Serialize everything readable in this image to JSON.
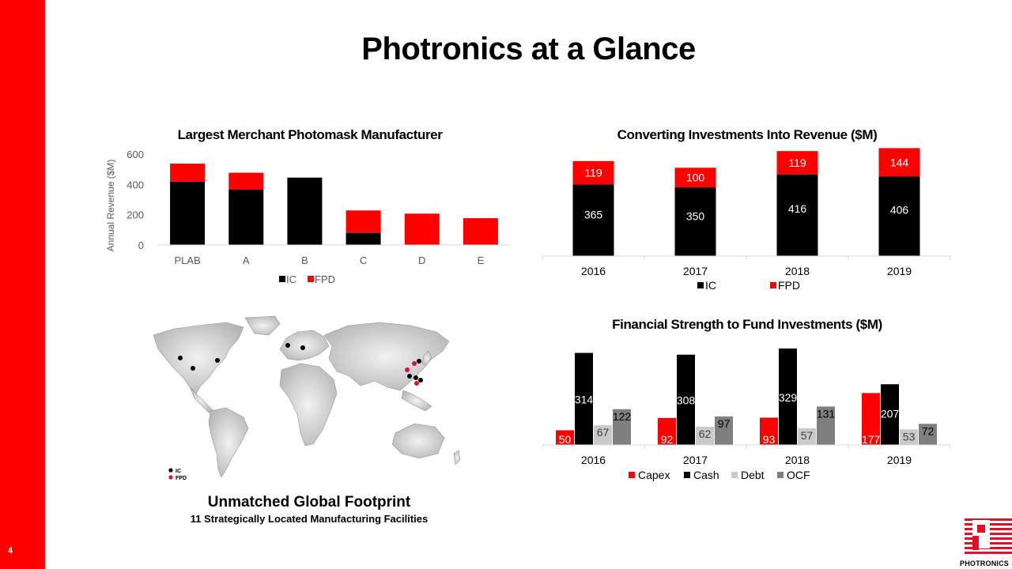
{
  "page": {
    "title": "Photronics at a Glance",
    "page_number": "4"
  },
  "colors": {
    "red": "#ff0000",
    "black": "#000000",
    "light_gray": "#c9c9c9",
    "dark_gray": "#7f7f7f"
  },
  "chart_data": [
    {
      "type": "bar",
      "stacked": true,
      "title": "Largest Merchant Photomask Manufacturer",
      "ylabel": "Annual Revenue ($M)",
      "xlabel": "",
      "ylim": [
        0,
        600
      ],
      "yticks": [
        "0",
        "200",
        "400",
        "600"
      ],
      "categories": [
        "PLAB",
        "A",
        "B",
        "C",
        "D",
        "E"
      ],
      "series": [
        {
          "name": "IC",
          "color": "#000000",
          "values": [
            418,
            365,
            445,
            80,
            0,
            0
          ]
        },
        {
          "name": "FPD",
          "color": "#ff0000",
          "values": [
            119,
            112,
            0,
            148,
            207,
            177
          ]
        }
      ],
      "legend": "bottom"
    },
    {
      "type": "bar",
      "stacked": true,
      "title": "Converting Investments Into Revenue ($M)",
      "categories": [
        "2016",
        "2017",
        "2018",
        "2019"
      ],
      "series": [
        {
          "name": "IC",
          "color": "#000000",
          "values": [
            365,
            350,
            416,
            406
          ],
          "labels": [
            "365",
            "350",
            "416",
            "406"
          ]
        },
        {
          "name": "FPD",
          "color": "#ff0000",
          "values": [
            119,
            100,
            119,
            144
          ],
          "labels": [
            "119",
            "100",
            "119",
            "144"
          ]
        }
      ],
      "legend": "bottom"
    },
    {
      "type": "bar",
      "stacked": false,
      "title": "Financial Strength to Fund Investments ($M)",
      "categories": [
        "2016",
        "2017",
        "2018",
        "2019"
      ],
      "series": [
        {
          "name": "Capex",
          "color": "#ff0000",
          "values": [
            50,
            92,
            93,
            177
          ],
          "labels": [
            "50",
            "92",
            "93",
            "177"
          ]
        },
        {
          "name": "Cash",
          "color": "#000000",
          "values": [
            314,
            308,
            329,
            207
          ],
          "labels": [
            "314",
            "308",
            "329",
            "207"
          ]
        },
        {
          "name": "Debt",
          "color": "#c9c9c9",
          "values": [
            67,
            62,
            57,
            53
          ],
          "labels": [
            "67",
            "62",
            "57",
            "53"
          ]
        },
        {
          "name": "OCF",
          "color": "#7f7f7f",
          "values": [
            122,
            97,
            131,
            72
          ],
          "labels": [
            "122",
            "97",
            "131",
            "72"
          ]
        }
      ],
      "legend": "bottom"
    }
  ],
  "map": {
    "legend": [
      {
        "label": "IC",
        "color": "#000000"
      },
      {
        "label": "FPD",
        "color": "#ff0000"
      }
    ],
    "caption_title": "Unmatched Global Footprint",
    "caption_subtitle": "11 Strategically Located Manufacturing Facilities"
  },
  "logo": {
    "text": "PHOTRONICS"
  }
}
